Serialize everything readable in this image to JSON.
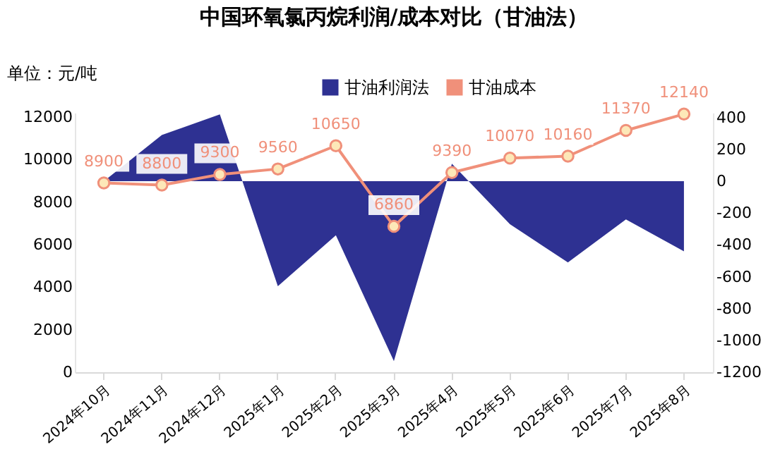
{
  "chart_data": {
    "type": "line",
    "title": "中国环氧氯丙烷利润/成本对比（甘油法）",
    "annotations": [
      "单位：元/吨"
    ],
    "categories": [
      "2024年10月",
      "2024年11月",
      "2024年12月",
      "2025年1月",
      "2025年2月",
      "2025年3月",
      "2025年4月",
      "2025年5月",
      "2025年6月",
      "2025年7月",
      "2025年8月"
    ],
    "series": [
      {
        "name": "甘油利润法",
        "type": "area",
        "axis": "y2",
        "color": "#2e3192",
        "values": [
          0,
          290,
          420,
          -660,
          -340,
          -1130,
          110,
          -270,
          -510,
          -240,
          -440
        ]
      },
      {
        "name": "甘油成本",
        "color": "#f0907a",
        "marker": "circle",
        "values": [
          8900,
          8800,
          9300,
          9560,
          10650,
          6860,
          9390,
          10070,
          10160,
          11370,
          12140
        ],
        "value_labels": [
          "8900",
          "8800",
          "9300",
          "9560",
          "10650",
          "6860",
          "9390",
          "10070",
          "10160",
          "11370",
          "12140"
        ]
      }
    ],
    "ylim": [
      0,
      12200
    ],
    "yticks": [
      0,
      2000,
      4000,
      6000,
      8000,
      10000,
      12000
    ],
    "y2lim": [
      -1200,
      430
    ],
    "y2ticks": [
      -1200,
      -1000,
      -800,
      -600,
      -400,
      -200,
      0,
      200,
      400
    ],
    "grid": false,
    "legend": "top right"
  }
}
